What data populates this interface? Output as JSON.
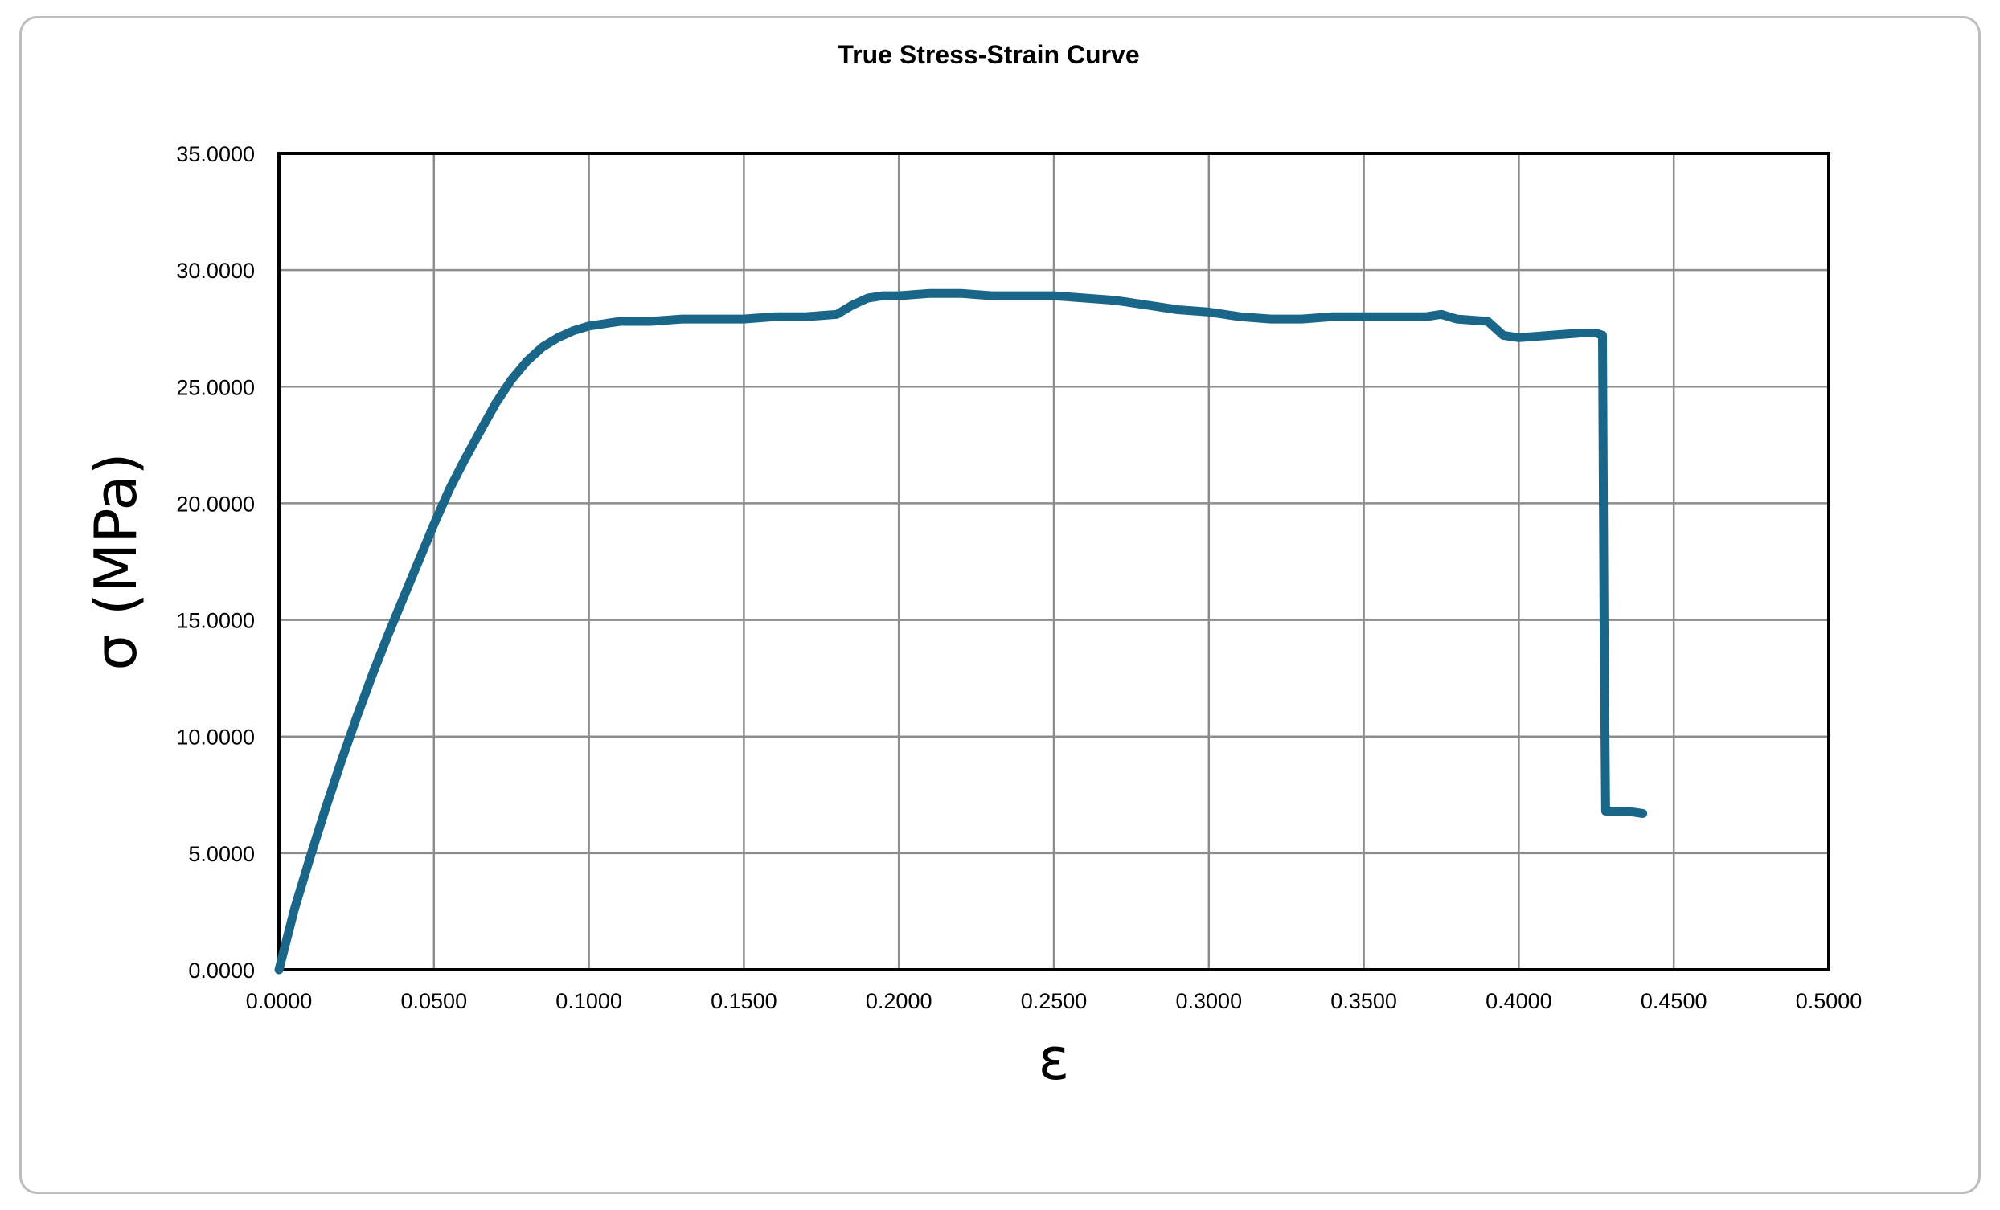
{
  "chart_data": {
    "type": "line",
    "title": "True Stress-Strain Curve",
    "xlabel": "ε",
    "ylabel": "σ (MPa)",
    "xlim": [
      0,
      0.5
    ],
    "ylim": [
      0,
      35
    ],
    "grid": true,
    "legend": "none",
    "x_ticks": [
      "0.0000",
      "0.0500",
      "0.1000",
      "0.1500",
      "0.2000",
      "0.2500",
      "0.3000",
      "0.3500",
      "0.4000",
      "0.4500",
      "0.5000"
    ],
    "y_ticks": [
      "0.0000",
      "5.0000",
      "10.0000",
      "15.0000",
      "20.0000",
      "25.0000",
      "30.0000",
      "35.0000"
    ],
    "line_color": "#1a6688",
    "series": [
      {
        "x": [
          0.0,
          0.005,
          0.01,
          0.015,
          0.02,
          0.025,
          0.03,
          0.035,
          0.04,
          0.045,
          0.05,
          0.055,
          0.06,
          0.065,
          0.07,
          0.075,
          0.08,
          0.085,
          0.09,
          0.095,
          0.1,
          0.105,
          0.11,
          0.115,
          0.12,
          0.13,
          0.14,
          0.15,
          0.16,
          0.17,
          0.18,
          0.185,
          0.19,
          0.195,
          0.2,
          0.21,
          0.22,
          0.23,
          0.24,
          0.25,
          0.26,
          0.27,
          0.28,
          0.29,
          0.3,
          0.31,
          0.32,
          0.33,
          0.34,
          0.35,
          0.36,
          0.37,
          0.375,
          0.38,
          0.39,
          0.395,
          0.4,
          0.41,
          0.42,
          0.425,
          0.427,
          0.4275,
          0.428,
          0.435,
          0.44
        ],
        "y": [
          0.0,
          2.6,
          4.8,
          6.9,
          8.9,
          10.8,
          12.6,
          14.3,
          15.9,
          17.5,
          19.1,
          20.6,
          21.9,
          23.1,
          24.3,
          25.3,
          26.1,
          26.7,
          27.1,
          27.4,
          27.6,
          27.7,
          27.8,
          27.8,
          27.8,
          27.9,
          27.9,
          27.9,
          28.0,
          28.0,
          28.1,
          28.5,
          28.8,
          28.9,
          28.9,
          29.0,
          29.0,
          28.9,
          28.9,
          28.9,
          28.8,
          28.7,
          28.5,
          28.3,
          28.2,
          28.0,
          27.9,
          27.9,
          28.0,
          28.0,
          28.0,
          28.0,
          28.1,
          27.9,
          27.8,
          27.2,
          27.1,
          27.2,
          27.3,
          27.3,
          27.2,
          15.0,
          6.8,
          6.8,
          6.7
        ]
      }
    ]
  }
}
